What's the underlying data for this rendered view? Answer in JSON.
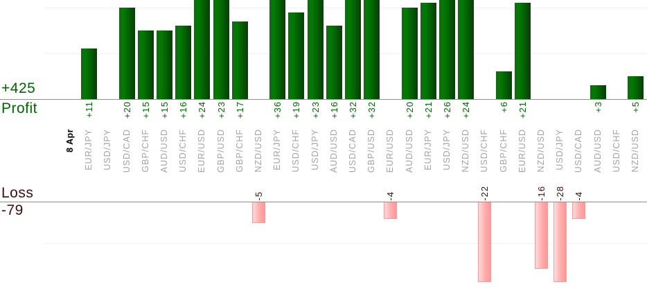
{
  "colors": {
    "profit_text": "#006600",
    "loss_text": "#3c0e0e",
    "pair_text": "#a3a3a3",
    "date_text": "#000000",
    "axis_line": "#8f8f8f",
    "gridline": "#f1f1f1",
    "profit_bar_start": "#1a651a",
    "profit_bar_mid": "#007c00",
    "profit_bar_end": "#0a3c0a",
    "loss_bar_start": "#ffdcdc",
    "loss_bar_mid": "#ffb0b0",
    "loss_bar_end": "#ff9696",
    "loss_bar_border": "#ef9f9f"
  },
  "chart_data": {
    "type": "bar",
    "title": "",
    "date": "8 Apr",
    "profit_axis": {
      "label": "Profit",
      "total": 425,
      "total_display": "+425"
    },
    "loss_axis": {
      "label": "Loss",
      "total": -79,
      "total_display": "-79"
    },
    "gridline_step": 10,
    "grid": "on",
    "categories": [
      "8 Apr",
      "EUR/JPY",
      "USD/JPY",
      "USD/CAD",
      "GBP/CHF",
      "AUD/USD",
      "USD/CHF",
      "EUR/USD",
      "GBP/USD",
      "GBP/CHF",
      "NZD/USD",
      "EUR/JPY",
      "USD/CHF",
      "USD/JPY",
      "AUD/USD",
      "USD/CAD",
      "GBP/USD",
      "EUR/USD",
      "AUD/USD",
      "EUR/JPY",
      "USD/JPY",
      "NZD/USD",
      "USD/CHF",
      "GBP/CHF",
      "EUR/USD",
      "NZD/USD",
      "USD/JPY",
      "USD/CAD",
      "AUD/USD",
      "USD/CHF",
      "NZD/USD"
    ],
    "values": [
      null,
      11,
      0,
      20,
      15,
      15,
      16,
      24,
      23,
      17,
      -5,
      36,
      19,
      23,
      16,
      32,
      32,
      -4,
      20,
      21,
      26,
      24,
      -22,
      6,
      21,
      -16,
      -28,
      -4,
      3,
      0,
      5
    ]
  }
}
